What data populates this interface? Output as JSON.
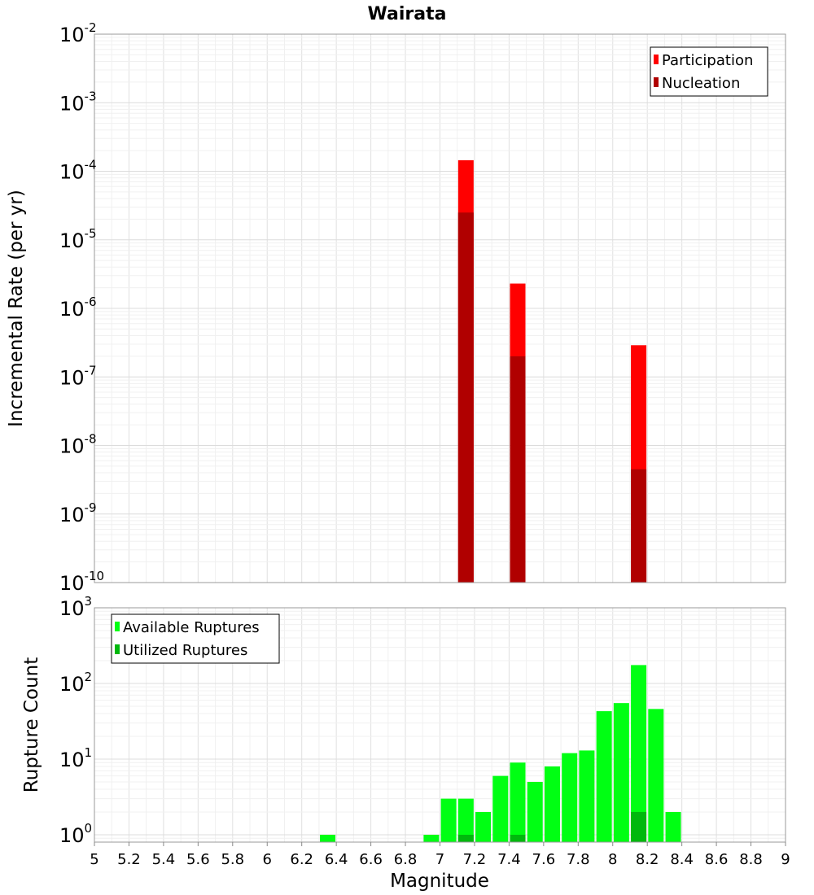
{
  "chart_data": [
    {
      "type": "bar",
      "title": "Wairata",
      "ylabel": "Incremental Rate (per yr)",
      "yscale": "log",
      "ylim": [
        1e-10,
        0.01
      ],
      "xlim": [
        5,
        9
      ],
      "y_ticks": [
        {
          "base": "10",
          "exp": "-10"
        },
        {
          "base": "10",
          "exp": "-9"
        },
        {
          "base": "10",
          "exp": "-8"
        },
        {
          "base": "10",
          "exp": "-7"
        },
        {
          "base": "10",
          "exp": "-6"
        },
        {
          "base": "10",
          "exp": "-5"
        },
        {
          "base": "10",
          "exp": "-4"
        },
        {
          "base": "10",
          "exp": "-3"
        },
        {
          "base": "10",
          "exp": "-2"
        }
      ],
      "legend_position": "top-right",
      "grid": true,
      "series": [
        {
          "name": "Participation",
          "color": "#ff0000",
          "x": [
            7.15,
            7.45,
            8.15
          ],
          "values": [
            0.000145,
            2.3e-06,
            2.9e-07
          ]
        },
        {
          "name": "Nucleation",
          "color": "#b00000",
          "x": [
            7.15,
            7.45,
            8.15
          ],
          "values": [
            2.5e-05,
            2e-07,
            4.5e-09
          ]
        }
      ]
    },
    {
      "type": "bar",
      "xlabel": "Magnitude",
      "ylabel": "Rupture Count",
      "yscale": "log",
      "ylim": [
        0.8,
        1000
      ],
      "xlim": [
        5,
        9
      ],
      "x_ticks": [
        "5",
        "5.2",
        "5.4",
        "5.6",
        "5.8",
        "6",
        "6.2",
        "6.4",
        "6.6",
        "6.8",
        "7",
        "7.2",
        "7.4",
        "7.6",
        "7.8",
        "8",
        "8.2",
        "8.4",
        "8.6",
        "8.8",
        "9"
      ],
      "y_ticks": [
        {
          "base": "10",
          "exp": "0"
        },
        {
          "base": "10",
          "exp": "1"
        },
        {
          "base": "10",
          "exp": "2"
        },
        {
          "base": "10",
          "exp": "3"
        }
      ],
      "legend_position": "top-left",
      "grid": true,
      "series": [
        {
          "name": "Available Ruptures",
          "color": "#00ff13",
          "x": [
            6.35,
            6.95,
            7.05,
            7.15,
            7.25,
            7.35,
            7.45,
            7.55,
            7.65,
            7.75,
            7.85,
            7.95,
            8.05,
            8.15,
            8.25,
            8.35
          ],
          "values": [
            1,
            1,
            3,
            3,
            2,
            6,
            9,
            5,
            8,
            12,
            13,
            43,
            55,
            175,
            46,
            2
          ]
        },
        {
          "name": "Utilized Ruptures",
          "color": "#00b80d",
          "x": [
            7.15,
            7.45,
            8.15
          ],
          "values": [
            1,
            1,
            2
          ]
        }
      ]
    }
  ]
}
